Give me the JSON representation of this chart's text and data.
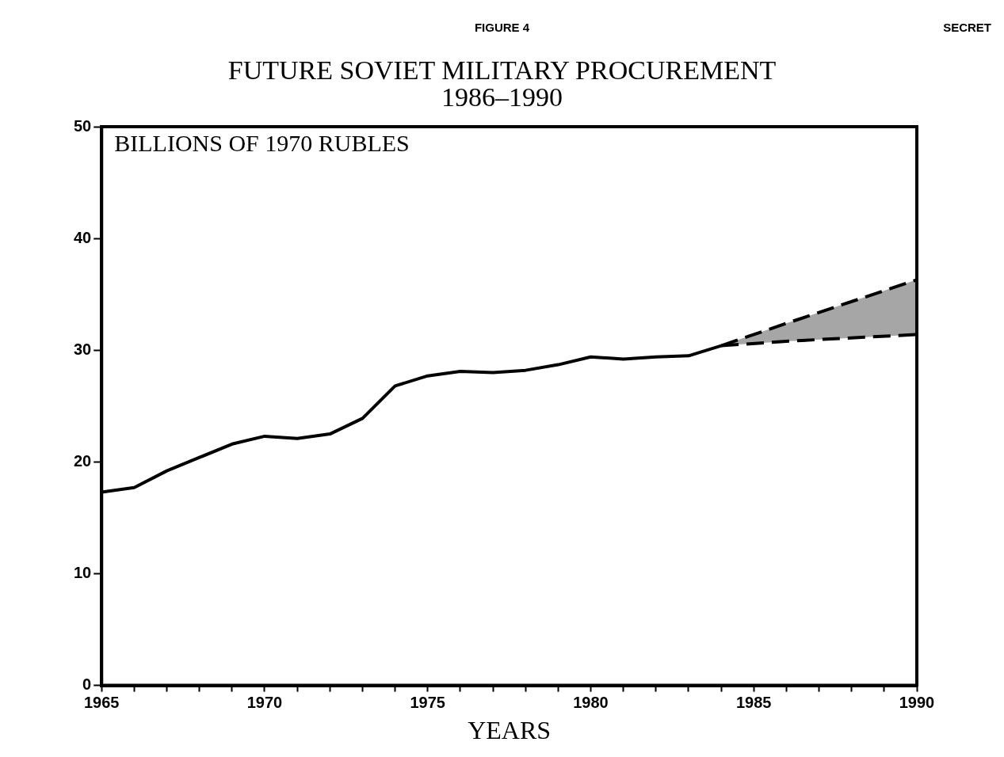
{
  "chart_data": {
    "type": "line",
    "title": "FUTURE SOVIET MILITARY PROCUREMENT\n1986–1990",
    "xlabel": "YEARS",
    "ylabel": "BILLIONS OF 1970 RUBLES",
    "annotations": [
      "FIGURE 4",
      "SECRET"
    ],
    "series": [
      {
        "color": "#000000",
        "line_style": "solid",
        "x": [
          1965,
          1966,
          1967,
          1968,
          1969,
          1970,
          1971,
          1972,
          1973,
          1974,
          1975,
          1976,
          1977,
          1978,
          1979,
          1980,
          1981,
          1982,
          1983,
          1984
        ],
        "values": [
          17.3,
          17.7,
          19.2,
          20.4,
          21.6,
          22.3,
          22.1,
          22.5,
          23.9,
          26.8,
          27.7,
          28.1,
          28.0,
          28.2,
          28.7,
          29.4,
          29.2,
          29.4,
          29.5,
          30.4
        ]
      },
      {
        "color": "#000000",
        "line_style": "dashed",
        "x": [
          1984,
          1986,
          1990
        ],
        "values": [
          30.4,
          32.4,
          36.3
        ],
        "lower": [
          30.4,
          30.8,
          31.4
        ],
        "upper": [
          30.4,
          32.4,
          36.3
        ]
      },
      {
        "color": "#000000",
        "line_style": "dashed",
        "x": [
          1984,
          1986,
          1990
        ],
        "values": [
          30.4,
          30.8,
          31.4
        ]
      }
    ],
    "xlim": [
      1965,
      1990
    ],
    "xticks": [
      1965,
      {
        "value": 1966,
        "label": null
      },
      {
        "value": 1967,
        "label": null
      },
      {
        "value": 1968,
        "label": null
      },
      {
        "value": 1969,
        "label": null
      },
      1970,
      {
        "value": 1971,
        "label": null
      },
      {
        "value": 1972,
        "label": null
      },
      {
        "value": 1973,
        "label": null
      },
      {
        "value": 1974,
        "label": null
      },
      1975,
      {
        "value": 1976,
        "label": null
      },
      {
        "value": 1977,
        "label": null
      },
      {
        "value": 1978,
        "label": null
      },
      {
        "value": 1979,
        "label": null
      },
      1980,
      {
        "value": 1981,
        "label": null
      },
      {
        "value": 1982,
        "label": null
      },
      {
        "value": 1983,
        "label": null
      },
      {
        "value": 1984,
        "label": null
      },
      1985,
      {
        "value": 1986,
        "label": null
      },
      {
        "value": 1987,
        "label": null
      },
      {
        "value": 1988,
        "label": null
      },
      {
        "value": 1989,
        "label": null
      },
      1990
    ],
    "ylim": [
      0,
      50
    ],
    "yticks": [
      0,
      10,
      20,
      30,
      40,
      50
    ],
    "grid": false,
    "legend": false,
    "marker": "none"
  }
}
